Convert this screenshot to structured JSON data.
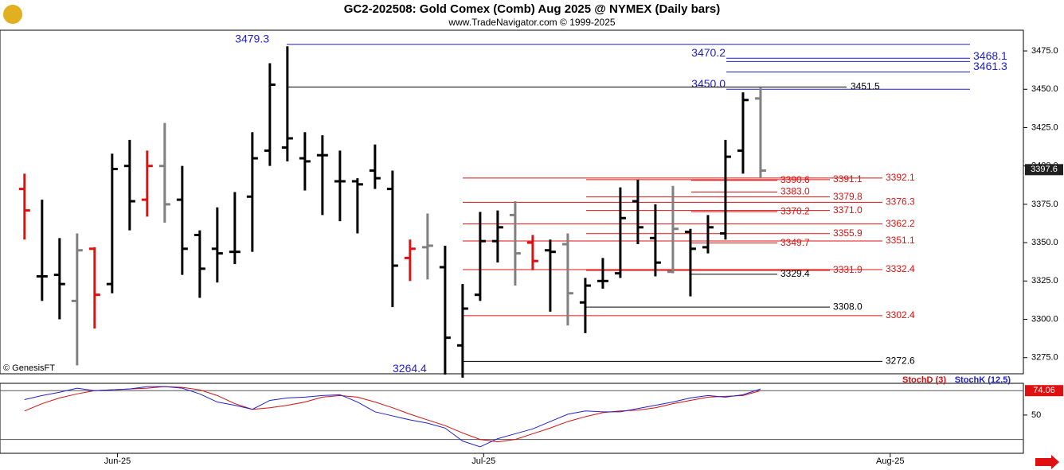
{
  "chart_data": {
    "type": "ohlc",
    "title": "GC2-202508:  Gold Comex (Comb) Aug 2025 @ NYMEX  (Daily bars)",
    "subtitle": "www.TradeNavigator.com © 1999-2025",
    "source": "© GenesisFT",
    "ylim": [
      3264.5,
      3488.5
    ],
    "yticks": [
      {
        "value": 3275,
        "label": "3275.0"
      },
      {
        "value": 3300,
        "label": "3300.0"
      },
      {
        "value": 3325,
        "label": "3325.0"
      },
      {
        "value": 3350,
        "label": "3350.0"
      },
      {
        "value": 3375,
        "label": "3375.0"
      },
      {
        "value": 3400,
        "label": "3400.0"
      },
      {
        "value": 3425,
        "label": "3425.0"
      },
      {
        "value": 3450,
        "label": "3450.0"
      },
      {
        "value": 3475,
        "label": "3475.0"
      }
    ],
    "xlim": [
      -1.4,
      57
    ],
    "xticks": [
      {
        "value": 5.3,
        "label": "Jun-25"
      },
      {
        "value": 26.2,
        "label": "Jul-25"
      },
      {
        "value": 49.4,
        "label": "Aug-25"
      }
    ],
    "last_price": 3397.6,
    "bars": [
      {
        "open": 3385,
        "high": 3395,
        "low": 3352,
        "close": 3371,
        "color": "#e01010"
      },
      {
        "open": 3328,
        "high": 3378,
        "low": 3312,
        "close": 3328,
        "color": "#000000"
      },
      {
        "open": 3329,
        "high": 3353,
        "low": 3300,
        "close": 3323,
        "color": "#000000"
      },
      {
        "open": 3312,
        "high": 3356,
        "low": 3270,
        "close": 3345,
        "color": "#808080"
      },
      {
        "open": 3346,
        "high": 3347,
        "low": 3294,
        "close": 3316,
        "color": "#e01010"
      },
      {
        "open": 3323,
        "high": 3408,
        "low": 3317,
        "close": 3398,
        "color": "#000000"
      },
      {
        "open": 3400,
        "high": 3417,
        "low": 3358,
        "close": 3377,
        "color": "#000000"
      },
      {
        "open": 3378,
        "high": 3410,
        "low": 3367,
        "close": 3400,
        "color": "#e01010"
      },
      {
        "open": 3400,
        "high": 3428,
        "low": 3363,
        "close": 3375,
        "color": "#808080"
      },
      {
        "open": 3378,
        "high": 3400,
        "low": 3329,
        "close": 3346,
        "color": "#000000"
      },
      {
        "open": 3355,
        "high": 3358,
        "low": 3314,
        "close": 3333,
        "color": "#000000"
      },
      {
        "open": 3346,
        "high": 3373,
        "low": 3324,
        "close": 3343,
        "color": "#000000"
      },
      {
        "open": 3344,
        "high": 3383,
        "low": 3336,
        "close": 3344,
        "color": "#000000"
      },
      {
        "open": 3380,
        "high": 3422,
        "low": 3344,
        "close": 3405,
        "color": "#000000"
      },
      {
        "open": 3410,
        "high": 3467,
        "low": 3400,
        "close": 3453,
        "color": "#000000"
      },
      {
        "open": 3412,
        "high": 3478,
        "low": 3403,
        "close": 3418,
        "color": "#000000"
      },
      {
        "open": 3405,
        "high": 3422,
        "low": 3384,
        "close": 3403,
        "color": "#000000"
      },
      {
        "open": 3407,
        "high": 3420,
        "low": 3368,
        "close": 3407,
        "color": "#000000"
      },
      {
        "open": 3390,
        "high": 3410,
        "low": 3364,
        "close": 3390,
        "color": "#000000"
      },
      {
        "open": 3390,
        "high": 3392,
        "low": 3356,
        "close": 3388,
        "color": "#000000"
      },
      {
        "open": 3397,
        "high": 3414,
        "low": 3385,
        "close": 3392,
        "color": "#000000"
      },
      {
        "open": 3385,
        "high": 3397,
        "low": 3308,
        "close": 3335,
        "color": "#000000"
      },
      {
        "open": 3340,
        "high": 3352,
        "low": 3325,
        "close": 3346,
        "color": "#e01010"
      },
      {
        "open": 3347,
        "high": 3369,
        "low": 3326,
        "close": 3348,
        "color": "#808080"
      },
      {
        "open": 3334,
        "high": 3348,
        "low": 3264,
        "close": 3288,
        "color": "#000000"
      },
      {
        "open": 3283,
        "high": 3323,
        "low": 3262,
        "close": 3307,
        "color": "#000000"
      },
      {
        "open": 3316,
        "high": 3370,
        "low": 3312,
        "close": 3351,
        "color": "#000000"
      },
      {
        "open": 3351,
        "high": 3371,
        "low": 3337,
        "close": 3360,
        "color": "#000000"
      },
      {
        "open": 3368,
        "high": 3377,
        "low": 3322,
        "close": 3343,
        "color": "#808080"
      },
      {
        "open": 3350,
        "high": 3355,
        "low": 3332,
        "close": 3338,
        "color": "#e01010"
      },
      {
        "open": 3345,
        "high": 3352,
        "low": 3305,
        "close": 3344,
        "color": "#000000"
      },
      {
        "open": 3349,
        "high": 3356,
        "low": 3296,
        "close": 3317,
        "color": "#808080"
      },
      {
        "open": 3311,
        "high": 3327,
        "low": 3291,
        "close": 3322,
        "color": "#000000"
      },
      {
        "open": 3325,
        "high": 3340,
        "low": 3320,
        "close": 3325,
        "color": "#000000"
      },
      {
        "open": 3330,
        "high": 3386,
        "low": 3327,
        "close": 3366,
        "color": "#000000"
      },
      {
        "open": 3377,
        "high": 3391,
        "low": 3349,
        "close": 3360,
        "color": "#000000"
      },
      {
        "open": 3353,
        "high": 3375,
        "low": 3328,
        "close": 3337,
        "color": "#000000"
      },
      {
        "open": 3331,
        "high": 3387,
        "low": 3330,
        "close": 3359,
        "color": "#808080"
      },
      {
        "open": 3357,
        "high": 3359,
        "low": 3315,
        "close": 3346,
        "color": "#000000"
      },
      {
        "open": 3347,
        "high": 3368,
        "low": 3343,
        "close": 3360,
        "color": "#000000"
      },
      {
        "open": 3356,
        "high": 3417,
        "low": 3352,
        "close": 3406,
        "color": "#000000"
      },
      {
        "open": 3410,
        "high": 3448,
        "low": 3395,
        "close": 3443,
        "color": "#000000"
      },
      {
        "open": 3444,
        "high": 3451,
        "low": 3392,
        "close": 3397,
        "color": "#808080"
      }
    ],
    "levels": [
      {
        "value": 3479.3,
        "color": "#2020d0"
      },
      {
        "value": 3470.2,
        "color": "#2020d0"
      },
      {
        "value": 3468.1,
        "color": "#2020d0"
      },
      {
        "value": 3461.3,
        "color": "#2020d0"
      },
      {
        "value": 3450.0,
        "color": "#2020d0"
      },
      {
        "value": 3451.5,
        "color": "#000000"
      },
      {
        "value": 3392.1,
        "color": "#e01010"
      },
      {
        "value": 3391.1,
        "color": "#e01010"
      },
      {
        "value": 3390.6,
        "color": "#e01010"
      },
      {
        "value": 3383.0,
        "color": "#e01010"
      },
      {
        "value": 3379.8,
        "color": "#e01010"
      },
      {
        "value": 3376.3,
        "color": "#e01010"
      },
      {
        "value": 3371.0,
        "color": "#e01010"
      },
      {
        "value": 3370.2,
        "color": "#e01010"
      },
      {
        "value": 3362.2,
        "color": "#e01010"
      },
      {
        "value": 3355.9,
        "color": "#e01010"
      },
      {
        "value": 3351.1,
        "color": "#e01010"
      },
      {
        "value": 3349.7,
        "color": "#e01010"
      },
      {
        "value": 3332.4,
        "color": "#e01010"
      },
      {
        "value": 3331.9,
        "color": "#e01010"
      },
      {
        "value": 3329.4,
        "color": "#000000"
      },
      {
        "value": 3308.0,
        "color": "#000000"
      },
      {
        "value": 3302.4,
        "color": "#e01010"
      },
      {
        "value": 3272.6,
        "color": "#000000"
      },
      {
        "value": 3264.4,
        "color": "#2020d0"
      }
    ],
    "level_labels": [
      "3479.3",
      "3470.2",
      "3468.1",
      "3461.3",
      "3450.0",
      "3451.5",
      "3392.1",
      "3391.1",
      "3390.6",
      "3383.0",
      "3379.8",
      "3376.3",
      "3371.0",
      "3370.2",
      "3362.2",
      "3355.9",
      "3351.1",
      "3349.7",
      "3332.4",
      "3331.9",
      "3329.4",
      "3308.0",
      "3302.4",
      "3272.6",
      "3264.4"
    ],
    "stoch": {
      "ylim": [
        3,
        89
      ],
      "yticks": [
        50
      ],
      "levels": [
        20,
        80
      ],
      "last_label": "74.06",
      "series": [
        {
          "name": "StochD (3)",
          "color": "#d01010",
          "values": [
            55,
            64,
            71,
            76,
            80,
            81,
            82,
            83,
            85,
            84,
            81,
            74,
            64,
            57,
            59,
            62,
            66,
            72,
            74,
            72,
            66,
            59,
            51,
            44,
            37,
            28,
            20,
            17,
            20,
            27,
            34,
            42,
            48,
            53,
            55,
            56,
            59,
            64,
            68,
            72,
            73,
            74,
            80
          ]
        },
        {
          "name": "StochK (12,5)",
          "color": "#2020d0",
          "values": [
            69,
            74,
            78,
            83,
            80,
            81,
            82,
            85,
            85,
            83,
            76,
            66,
            62,
            57,
            68,
            71,
            72,
            74,
            75,
            66,
            54,
            49,
            44,
            40,
            34,
            18,
            11,
            21,
            27,
            33,
            42,
            51,
            55,
            54,
            54,
            58,
            62,
            66,
            71,
            74,
            72,
            75,
            82
          ]
        }
      ]
    }
  }
}
